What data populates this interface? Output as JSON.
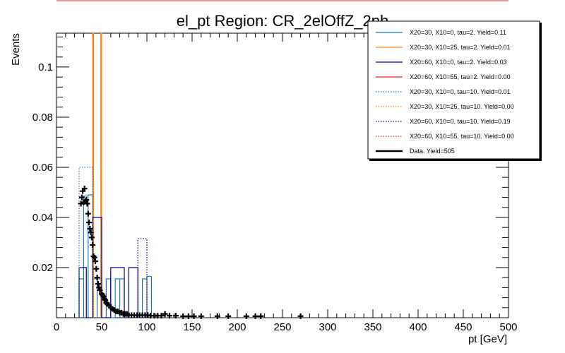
{
  "chart_data": {
    "type": "histogram",
    "title": "el_pt Region: CR_2elOffZ_2ph",
    "xlabel": "pt [GeV]",
    "ylabel": "Events",
    "xlim": [
      0,
      500
    ],
    "ylim": [
      0,
      0.1135
    ],
    "x_ticks": [
      0,
      50,
      100,
      150,
      200,
      250,
      300,
      350,
      400,
      450,
      500
    ],
    "y_ticks": [
      0.02,
      0.04,
      0.06,
      0.08,
      0.1
    ],
    "x_tick_labels": [
      "0",
      "50",
      "100",
      "150",
      "200",
      "250",
      "300",
      "350",
      "400",
      "450",
      "500"
    ],
    "y_tick_labels": [
      "0.02",
      "0.04",
      "0.06",
      "0.08",
      "0.1"
    ],
    "legend_position": "top-right",
    "series": [
      {
        "name": "X20=30, X10=0, tau=2. Yield=0.11",
        "color": "#1f77b4",
        "style": "solid",
        "bins": [
          [
            25,
            30,
            0.0155
          ],
          [
            30,
            35,
            0.0485
          ],
          [
            35,
            40,
            0.049
          ],
          [
            40,
            45,
            0.0155
          ],
          [
            45,
            50,
            0.0155
          ],
          [
            55,
            60,
            0.0155
          ],
          [
            60,
            65,
            0.0
          ],
          [
            65,
            70,
            0.0155
          ],
          [
            70,
            75,
            0.0155
          ],
          [
            95,
            100,
            0.0155
          ],
          [
            100,
            105,
            0.0165
          ]
        ]
      },
      {
        "name": "X20=30, X10=25, tau=2. Yield=0.01",
        "color": "#ff7f0e",
        "style": "solid",
        "bins": [
          [
            40,
            41,
            0.115
          ],
          [
            49,
            50,
            0.115
          ]
        ]
      },
      {
        "name": "X20=60, X10=0, tau=2. Yield=0.03",
        "color": "#000080",
        "style": "solid",
        "bins": [
          [
            25,
            33,
            0.02
          ],
          [
            33,
            40,
            0.0
          ],
          [
            40,
            50,
            0.04
          ],
          [
            50,
            60,
            0.0
          ],
          [
            60,
            75,
            0.02
          ],
          [
            75,
            80,
            0.0
          ],
          [
            80,
            90,
            0.02
          ]
        ]
      },
      {
        "name": "X20=60, X10=55, tau=2. Yield=0.00",
        "color": "#d62728",
        "style": "solid",
        "bins": []
      },
      {
        "name": "X20=30, X10=0, tau=10. Yield=0.01",
        "color": "#1f77b4",
        "style": "dotted",
        "bins": [
          [
            25,
            40,
            0.06
          ]
        ]
      },
      {
        "name": "X20=30, X10=25, tau=10. Yield=0.00",
        "color": "#ff7f0e",
        "style": "dotted",
        "bins": []
      },
      {
        "name": "X20=60, X10=0, tau=10. Yield=0.19",
        "color": "#000080",
        "style": "dotted",
        "bins": [
          [
            90,
            100,
            0.0315
          ]
        ]
      },
      {
        "name": "X20=60, X10=55, tau=10. Yield=0.00",
        "color": "#d62728",
        "style": "dotted",
        "bins": []
      },
      {
        "name": "Data. Yield=505",
        "color": "#000000",
        "style": "points",
        "points": [
          [
            27,
            0.0455
          ],
          [
            28,
            0.048
          ],
          [
            29,
            0.0505
          ],
          [
            30,
            0.046
          ],
          [
            31,
            0.0515
          ],
          [
            32,
            0.0465
          ],
          [
            33,
            0.047
          ],
          [
            34,
            0.0455
          ],
          [
            35,
            0.0415
          ],
          [
            36,
            0.038
          ],
          [
            37,
            0.0355
          ],
          [
            38,
            0.034
          ],
          [
            39,
            0.032
          ],
          [
            40,
            0.029
          ],
          [
            41,
            0.0245
          ],
          [
            42,
            0.024
          ],
          [
            43,
            0.0225
          ],
          [
            44,
            0.0195
          ],
          [
            45,
            0.016
          ],
          [
            46,
            0.0135
          ],
          [
            47,
            0.012
          ],
          [
            48,
            0.011
          ],
          [
            50,
            0.0095
          ],
          [
            51,
            0.009
          ],
          [
            52,
            0.0085
          ],
          [
            53,
            0.0075
          ],
          [
            54,
            0.007
          ],
          [
            55,
            0.006
          ],
          [
            56,
            0.0055
          ],
          [
            58,
            0.005
          ],
          [
            60,
            0.004
          ],
          [
            62,
            0.0035
          ],
          [
            64,
            0.003
          ],
          [
            66,
            0.0025
          ],
          [
            68,
            0.0025
          ],
          [
            70,
            0.002
          ],
          [
            72,
            0.002
          ],
          [
            74,
            0.0015
          ],
          [
            76,
            0.0015
          ],
          [
            78,
            0.0015
          ],
          [
            80,
            0.001
          ],
          [
            83,
            0.001
          ],
          [
            86,
            0.001
          ],
          [
            89,
            0.001
          ],
          [
            92,
            0.001
          ],
          [
            95,
            0.001
          ],
          [
            98,
            0.001
          ],
          [
            101,
            0.001
          ],
          [
            104,
            0.0008
          ],
          [
            108,
            0.0008
          ],
          [
            112,
            0.0008
          ],
          [
            116,
            0.0008
          ],
          [
            120,
            0.0015
          ],
          [
            125,
            0.0008
          ],
          [
            132,
            0.0008
          ],
          [
            140,
            0.0006
          ],
          [
            146,
            0.0006
          ],
          [
            152,
            0.0006
          ],
          [
            160,
            0.0006
          ],
          [
            178,
            0.0006
          ],
          [
            190,
            0.0006
          ],
          [
            210,
            0.0006
          ],
          [
            220,
            0.0006
          ],
          [
            226,
            0.0006
          ],
          [
            270,
            0.0006
          ]
        ]
      }
    ]
  }
}
